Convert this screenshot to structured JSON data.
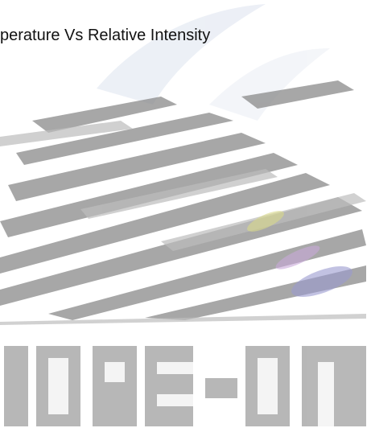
{
  "title": "perature Vs Relative Intensity"
}
